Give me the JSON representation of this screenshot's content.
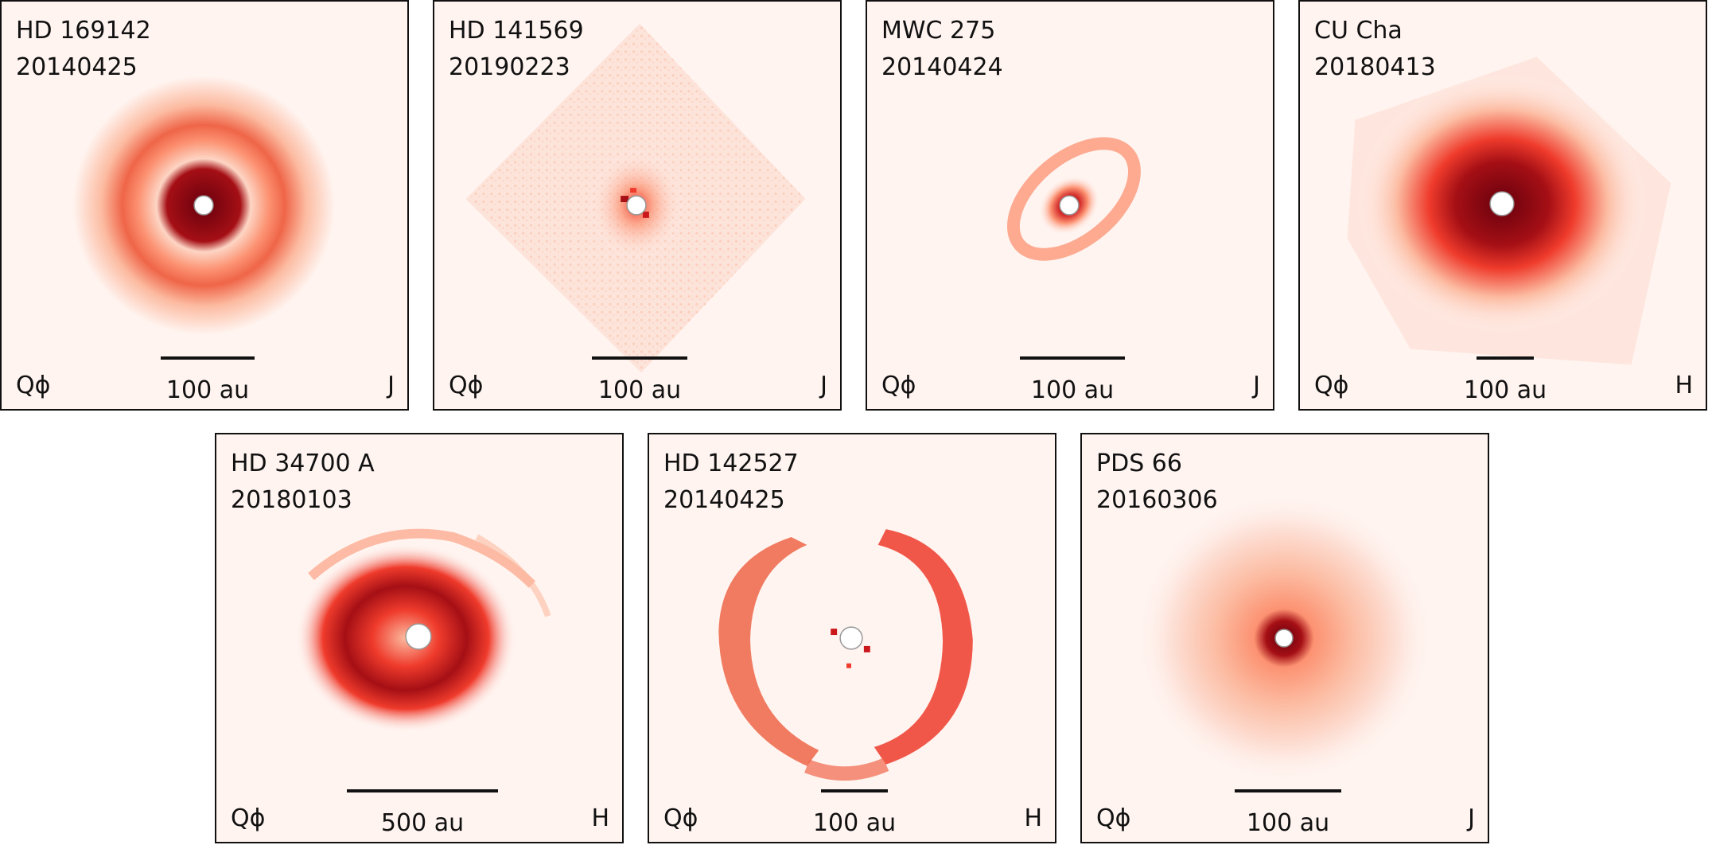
{
  "panels": [
    {
      "name": "HD 169142",
      "date": "20140425",
      "pol": "Qϕ",
      "scale": "100 au",
      "band": "J"
    },
    {
      "name": "HD 141569",
      "date": "20190223",
      "pol": "Qϕ",
      "scale": "100 au",
      "band": "J"
    },
    {
      "name": "MWC 275",
      "date": "20140424",
      "pol": "Qϕ",
      "scale": "100 au",
      "band": "J"
    },
    {
      "name": "CU Cha",
      "date": "20180413",
      "pol": "Qϕ",
      "scale": "100 au",
      "band": "H"
    },
    {
      "name": "HD 34700 A",
      "date": "20180103",
      "pol": "Qϕ",
      "scale": "500 au",
      "band": "H"
    },
    {
      "name": "HD 142527",
      "date": "20140425",
      "pol": "Qϕ",
      "scale": "100 au",
      "band": "H"
    },
    {
      "name": "PDS 66",
      "date": "20160306",
      "pol": "Qϕ",
      "scale": "100 au",
      "band": "J"
    }
  ],
  "colors": {
    "background": "#fff4f0",
    "light": "#fcbba1",
    "mid": "#ef3b2c",
    "dark": "#a50f15",
    "darkest": "#67000d"
  }
}
